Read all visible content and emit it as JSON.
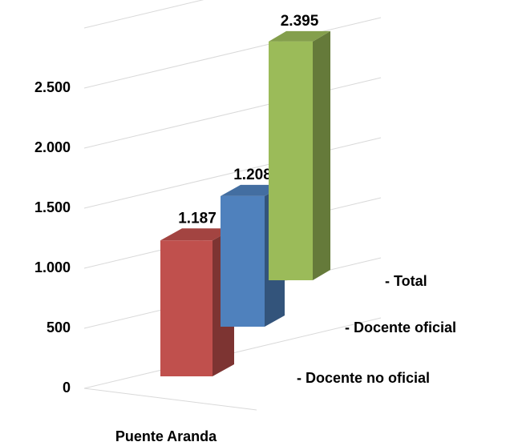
{
  "chart_data": {
    "type": "bar3d",
    "categories": [
      "Puente Aranda"
    ],
    "series": [
      {
        "name": "- Docente no oficial",
        "color": "#c0504d",
        "values": [
          1187
        ],
        "value_labels": [
          "1.187"
        ]
      },
      {
        "name": "- Docente oficial",
        "color": "#4f81bd",
        "values": [
          1208
        ],
        "value_labels": [
          "1.208"
        ]
      },
      {
        "name": "- Total",
        "color": "#9bbb59",
        "values": [
          2395
        ],
        "value_labels": [
          "2.395"
        ]
      }
    ],
    "ylim": [
      0,
      3000
    ],
    "yticks": [
      0,
      500,
      {
        "value": 1000,
        "label": "1.000"
      },
      {
        "value": 1500,
        "label": "1.500"
      },
      {
        "value": 2000,
        "label": "2.000"
      },
      {
        "value": 2500,
        "label": "2.500"
      }
    ],
    "grid": true
  }
}
